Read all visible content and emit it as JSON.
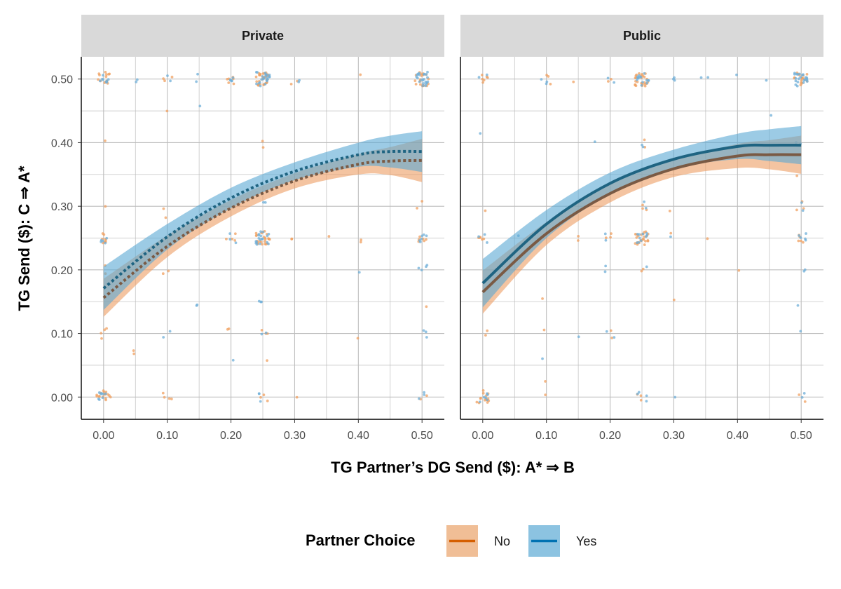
{
  "chart_data": {
    "type": "line",
    "xlabel": "TG Partner’s DG Send ($): A* ⇒ B",
    "ylabel": "TG Send ($): C ⇒ A*",
    "xlim": [
      -0.035,
      0.535
    ],
    "ylim": [
      -0.035,
      0.535
    ],
    "x_ticks": [
      0.0,
      0.1,
      0.2,
      0.3,
      0.4,
      0.5
    ],
    "x_tick_labels": [
      "0.00",
      "0.10",
      "0.20",
      "0.30",
      "0.40",
      "0.50"
    ],
    "y_ticks": [
      0.0,
      0.1,
      0.2,
      0.3,
      0.4,
      0.5
    ],
    "y_tick_labels": [
      "0.00",
      "0.10",
      "0.20",
      "0.30",
      "0.40",
      "0.50"
    ],
    "grid": true,
    "legend": {
      "title": "Partner Choice",
      "placement": "bottom",
      "entries": [
        {
          "label": "No",
          "color": "#D55E00",
          "fill": "#F0BE96"
        },
        {
          "label": "Yes",
          "color": "#0072B2",
          "fill": "#8CC3E1"
        }
      ]
    },
    "colors": {
      "no_line": "#7A5A44",
      "yes_line": "#1F6482",
      "no_band": "#ED9D63",
      "yes_band": "#5AA8D4",
      "no_point": "#F0A060",
      "yes_point": "#6FAFD8"
    },
    "panels": [
      {
        "strip": "Private",
        "linetype": "dotted",
        "series": [
          {
            "name": "No",
            "x": [
              0.0,
              0.1,
              0.2,
              0.3,
              0.4,
              0.45,
              0.5
            ],
            "y": [
              0.156,
              0.237,
              0.297,
              0.34,
              0.366,
              0.371,
              0.372
            ],
            "lower": [
              0.126,
              0.22,
              0.284,
              0.328,
              0.35,
              0.349,
              0.338
            ],
            "upper": [
              0.186,
              0.254,
              0.31,
              0.352,
              0.382,
              0.393,
              0.406
            ]
          },
          {
            "name": "Yes",
            "x": [
              0.0,
              0.1,
              0.2,
              0.3,
              0.4,
              0.45,
              0.5
            ],
            "y": [
              0.171,
              0.252,
              0.313,
              0.355,
              0.381,
              0.386,
              0.386
            ],
            "lower": [
              0.137,
              0.232,
              0.297,
              0.341,
              0.362,
              0.361,
              0.354
            ],
            "upper": [
              0.205,
              0.272,
              0.329,
              0.369,
              0.4,
              0.411,
              0.418
            ]
          }
        ]
      },
      {
        "strip": "Public",
        "linetype": "solid",
        "series": [
          {
            "name": "No",
            "x": [
              0.0,
              0.1,
              0.2,
              0.3,
              0.4,
              0.45,
              0.5
            ],
            "y": [
              0.165,
              0.257,
              0.32,
              0.359,
              0.379,
              0.381,
              0.381
            ],
            "lower": [
              0.131,
              0.239,
              0.306,
              0.346,
              0.36,
              0.358,
              0.351
            ],
            "upper": [
              0.199,
              0.275,
              0.334,
              0.372,
              0.398,
              0.404,
              0.411
            ]
          },
          {
            "name": "Yes",
            "x": [
              0.0,
              0.1,
              0.2,
              0.3,
              0.4,
              0.45,
              0.5
            ],
            "y": [
              0.179,
              0.272,
              0.336,
              0.374,
              0.394,
              0.396,
              0.396
            ],
            "lower": [
              0.141,
              0.25,
              0.319,
              0.359,
              0.374,
              0.371,
              0.366
            ],
            "upper": [
              0.217,
              0.294,
              0.353,
              0.389,
              0.414,
              0.421,
              0.426
            ]
          }
        ]
      }
    ],
    "points": [
      {
        "panel": 0,
        "group": "No",
        "x": 0.0,
        "y": 0.5,
        "n": 14
      },
      {
        "panel": 0,
        "group": "Yes",
        "x": 0.0,
        "y": 0.5,
        "n": 8
      },
      {
        "panel": 0,
        "group": "No",
        "x": 0.0,
        "y": 0.25,
        "n": 8
      },
      {
        "panel": 0,
        "group": "Yes",
        "x": 0.0,
        "y": 0.25,
        "n": 5
      },
      {
        "panel": 0,
        "group": "No",
        "x": 0.0,
        "y": 0.0,
        "n": 16
      },
      {
        "panel": 0,
        "group": "Yes",
        "x": 0.0,
        "y": 0.0,
        "n": 8
      },
      {
        "panel": 0,
        "group": "No",
        "x": 0.0,
        "y": 0.1,
        "n": 4
      },
      {
        "panel": 0,
        "group": "No",
        "x": 0.0,
        "y": 0.4,
        "n": 1
      },
      {
        "panel": 0,
        "group": "No",
        "x": 0.0,
        "y": 0.3,
        "n": 1
      },
      {
        "panel": 0,
        "group": "No",
        "x": 0.0,
        "y": 0.2,
        "n": 2
      },
      {
        "panel": 0,
        "group": "Yes",
        "x": 0.05,
        "y": 0.5,
        "n": 2
      },
      {
        "panel": 0,
        "group": "No",
        "x": 0.05,
        "y": 0.07,
        "n": 2
      },
      {
        "panel": 0,
        "group": "No",
        "x": 0.1,
        "y": 0.5,
        "n": 3
      },
      {
        "panel": 0,
        "group": "Yes",
        "x": 0.1,
        "y": 0.5,
        "n": 2
      },
      {
        "panel": 0,
        "group": "No",
        "x": 0.1,
        "y": 0.45,
        "n": 1
      },
      {
        "panel": 0,
        "group": "No",
        "x": 0.1,
        "y": 0.29,
        "n": 2
      },
      {
        "panel": 0,
        "group": "No",
        "x": 0.1,
        "y": 0.2,
        "n": 2
      },
      {
        "panel": 0,
        "group": "Yes",
        "x": 0.1,
        "y": 0.1,
        "n": 2
      },
      {
        "panel": 0,
        "group": "No",
        "x": 0.1,
        "y": 0.0,
        "n": 4
      },
      {
        "panel": 0,
        "group": "Yes",
        "x": 0.15,
        "y": 0.5,
        "n": 2
      },
      {
        "panel": 0,
        "group": "Yes",
        "x": 0.15,
        "y": 0.45,
        "n": 1
      },
      {
        "panel": 0,
        "group": "Yes",
        "x": 0.15,
        "y": 0.14,
        "n": 2
      },
      {
        "panel": 0,
        "group": "No",
        "x": 0.2,
        "y": 0.5,
        "n": 6
      },
      {
        "panel": 0,
        "group": "Yes",
        "x": 0.2,
        "y": 0.5,
        "n": 5
      },
      {
        "panel": 0,
        "group": "No",
        "x": 0.2,
        "y": 0.25,
        "n": 4
      },
      {
        "panel": 0,
        "group": "Yes",
        "x": 0.2,
        "y": 0.25,
        "n": 3
      },
      {
        "panel": 0,
        "group": "No",
        "x": 0.2,
        "y": 0.1,
        "n": 2
      },
      {
        "panel": 0,
        "group": "Yes",
        "x": 0.2,
        "y": 0.05,
        "n": 1
      },
      {
        "panel": 0,
        "group": "No",
        "x": 0.25,
        "y": 0.5,
        "n": 30
      },
      {
        "panel": 0,
        "group": "Yes",
        "x": 0.25,
        "y": 0.5,
        "n": 22
      },
      {
        "panel": 0,
        "group": "No",
        "x": 0.25,
        "y": 0.25,
        "n": 24
      },
      {
        "panel": 0,
        "group": "Yes",
        "x": 0.25,
        "y": 0.25,
        "n": 18
      },
      {
        "panel": 0,
        "group": "No",
        "x": 0.25,
        "y": 0.4,
        "n": 2
      },
      {
        "panel": 0,
        "group": "Yes",
        "x": 0.25,
        "y": 0.3,
        "n": 2
      },
      {
        "panel": 0,
        "group": "Yes",
        "x": 0.25,
        "y": 0.15,
        "n": 3
      },
      {
        "panel": 0,
        "group": "No",
        "x": 0.25,
        "y": 0.1,
        "n": 3
      },
      {
        "panel": 0,
        "group": "Yes",
        "x": 0.25,
        "y": 0.1,
        "n": 2
      },
      {
        "panel": 0,
        "group": "No",
        "x": 0.25,
        "y": 0.05,
        "n": 1
      },
      {
        "panel": 0,
        "group": "No",
        "x": 0.25,
        "y": 0.0,
        "n": 3
      },
      {
        "panel": 0,
        "group": "Yes",
        "x": 0.25,
        "y": 0.0,
        "n": 3
      },
      {
        "panel": 0,
        "group": "No",
        "x": 0.3,
        "y": 0.5,
        "n": 2
      },
      {
        "panel": 0,
        "group": "Yes",
        "x": 0.3,
        "y": 0.5,
        "n": 2
      },
      {
        "panel": 0,
        "group": "No",
        "x": 0.3,
        "y": 0.25,
        "n": 2
      },
      {
        "panel": 0,
        "group": "No",
        "x": 0.3,
        "y": 0.0,
        "n": 1
      },
      {
        "panel": 0,
        "group": "No",
        "x": 0.35,
        "y": 0.25,
        "n": 1
      },
      {
        "panel": 0,
        "group": "No",
        "x": 0.4,
        "y": 0.5,
        "n": 1
      },
      {
        "panel": 0,
        "group": "No",
        "x": 0.4,
        "y": 0.25,
        "n": 2
      },
      {
        "panel": 0,
        "group": "Yes",
        "x": 0.4,
        "y": 0.2,
        "n": 1
      },
      {
        "panel": 0,
        "group": "No",
        "x": 0.4,
        "y": 0.1,
        "n": 1
      },
      {
        "panel": 0,
        "group": "No",
        "x": 0.5,
        "y": 0.5,
        "n": 18
      },
      {
        "panel": 0,
        "group": "Yes",
        "x": 0.5,
        "y": 0.5,
        "n": 22
      },
      {
        "panel": 0,
        "group": "No",
        "x": 0.5,
        "y": 0.25,
        "n": 6
      },
      {
        "panel": 0,
        "group": "Yes",
        "x": 0.5,
        "y": 0.25,
        "n": 6
      },
      {
        "panel": 0,
        "group": "No",
        "x": 0.5,
        "y": 0.3,
        "n": 2
      },
      {
        "panel": 0,
        "group": "Yes",
        "x": 0.5,
        "y": 0.2,
        "n": 4
      },
      {
        "panel": 0,
        "group": "No",
        "x": 0.5,
        "y": 0.15,
        "n": 1
      },
      {
        "panel": 0,
        "group": "Yes",
        "x": 0.5,
        "y": 0.1,
        "n": 3
      },
      {
        "panel": 0,
        "group": "No",
        "x": 0.5,
        "y": 0.0,
        "n": 2
      },
      {
        "panel": 0,
        "group": "Yes",
        "x": 0.5,
        "y": 0.0,
        "n": 3
      },
      {
        "panel": 1,
        "group": "No",
        "x": 0.0,
        "y": 0.5,
        "n": 6
      },
      {
        "panel": 1,
        "group": "Yes",
        "x": 0.0,
        "y": 0.5,
        "n": 2
      },
      {
        "panel": 1,
        "group": "Yes",
        "x": 0.0,
        "y": 0.41,
        "n": 1
      },
      {
        "panel": 1,
        "group": "No",
        "x": 0.0,
        "y": 0.3,
        "n": 1
      },
      {
        "panel": 1,
        "group": "No",
        "x": 0.0,
        "y": 0.25,
        "n": 5
      },
      {
        "panel": 1,
        "group": "Yes",
        "x": 0.0,
        "y": 0.25,
        "n": 3
      },
      {
        "panel": 1,
        "group": "No",
        "x": 0.0,
        "y": 0.1,
        "n": 2
      },
      {
        "panel": 1,
        "group": "No",
        "x": 0.0,
        "y": 0.0,
        "n": 14
      },
      {
        "panel": 1,
        "group": "Yes",
        "x": 0.0,
        "y": 0.0,
        "n": 6
      },
      {
        "panel": 1,
        "group": "Yes",
        "x": 0.05,
        "y": 0.25,
        "n": 1
      },
      {
        "panel": 1,
        "group": "No",
        "x": 0.1,
        "y": 0.5,
        "n": 3
      },
      {
        "panel": 1,
        "group": "Yes",
        "x": 0.1,
        "y": 0.5,
        "n": 3
      },
      {
        "panel": 1,
        "group": "No",
        "x": 0.1,
        "y": 0.15,
        "n": 1
      },
      {
        "panel": 1,
        "group": "No",
        "x": 0.1,
        "y": 0.1,
        "n": 1
      },
      {
        "panel": 1,
        "group": "Yes",
        "x": 0.1,
        "y": 0.06,
        "n": 1
      },
      {
        "panel": 1,
        "group": "No",
        "x": 0.1,
        "y": 0.03,
        "n": 1
      },
      {
        "panel": 1,
        "group": "No",
        "x": 0.1,
        "y": 0.0,
        "n": 1
      },
      {
        "panel": 1,
        "group": "No",
        "x": 0.15,
        "y": 0.5,
        "n": 1
      },
      {
        "panel": 1,
        "group": "No",
        "x": 0.15,
        "y": 0.25,
        "n": 2
      },
      {
        "panel": 1,
        "group": "Yes",
        "x": 0.15,
        "y": 0.1,
        "n": 1
      },
      {
        "panel": 1,
        "group": "Yes",
        "x": 0.18,
        "y": 0.4,
        "n": 1
      },
      {
        "panel": 1,
        "group": "No",
        "x": 0.2,
        "y": 0.5,
        "n": 2
      },
      {
        "panel": 1,
        "group": "Yes",
        "x": 0.2,
        "y": 0.5,
        "n": 2
      },
      {
        "panel": 1,
        "group": "No",
        "x": 0.2,
        "y": 0.25,
        "n": 3
      },
      {
        "panel": 1,
        "group": "Yes",
        "x": 0.2,
        "y": 0.25,
        "n": 2
      },
      {
        "panel": 1,
        "group": "Yes",
        "x": 0.2,
        "y": 0.2,
        "n": 2
      },
      {
        "panel": 1,
        "group": "No",
        "x": 0.2,
        "y": 0.1,
        "n": 2
      },
      {
        "panel": 1,
        "group": "Yes",
        "x": 0.2,
        "y": 0.1,
        "n": 2
      },
      {
        "panel": 1,
        "group": "No",
        "x": 0.25,
        "y": 0.5,
        "n": 26
      },
      {
        "panel": 1,
        "group": "Yes",
        "x": 0.25,
        "y": 0.5,
        "n": 14
      },
      {
        "panel": 1,
        "group": "No",
        "x": 0.25,
        "y": 0.25,
        "n": 24
      },
      {
        "panel": 1,
        "group": "Yes",
        "x": 0.25,
        "y": 0.25,
        "n": 10
      },
      {
        "panel": 1,
        "group": "No",
        "x": 0.25,
        "y": 0.4,
        "n": 2
      },
      {
        "panel": 1,
        "group": "Yes",
        "x": 0.25,
        "y": 0.4,
        "n": 2
      },
      {
        "panel": 1,
        "group": "No",
        "x": 0.25,
        "y": 0.3,
        "n": 3
      },
      {
        "panel": 1,
        "group": "Yes",
        "x": 0.25,
        "y": 0.3,
        "n": 2
      },
      {
        "panel": 1,
        "group": "No",
        "x": 0.25,
        "y": 0.2,
        "n": 2
      },
      {
        "panel": 1,
        "group": "Yes",
        "x": 0.25,
        "y": 0.2,
        "n": 1
      },
      {
        "panel": 1,
        "group": "No",
        "x": 0.25,
        "y": 0.0,
        "n": 3
      },
      {
        "panel": 1,
        "group": "Yes",
        "x": 0.25,
        "y": 0.0,
        "n": 4
      },
      {
        "panel": 1,
        "group": "Yes",
        "x": 0.3,
        "y": 0.5,
        "n": 3
      },
      {
        "panel": 1,
        "group": "No",
        "x": 0.3,
        "y": 0.3,
        "n": 1
      },
      {
        "panel": 1,
        "group": "No",
        "x": 0.3,
        "y": 0.25,
        "n": 1
      },
      {
        "panel": 1,
        "group": "Yes",
        "x": 0.3,
        "y": 0.25,
        "n": 1
      },
      {
        "panel": 1,
        "group": "No",
        "x": 0.3,
        "y": 0.15,
        "n": 1
      },
      {
        "panel": 1,
        "group": "Yes",
        "x": 0.3,
        "y": 0.0,
        "n": 1
      },
      {
        "panel": 1,
        "group": "Yes",
        "x": 0.35,
        "y": 0.5,
        "n": 2
      },
      {
        "panel": 1,
        "group": "No",
        "x": 0.35,
        "y": 0.25,
        "n": 1
      },
      {
        "panel": 1,
        "group": "Yes",
        "x": 0.4,
        "y": 0.5,
        "n": 1
      },
      {
        "panel": 1,
        "group": "No",
        "x": 0.4,
        "y": 0.2,
        "n": 1
      },
      {
        "panel": 1,
        "group": "Yes",
        "x": 0.45,
        "y": 0.45,
        "n": 1
      },
      {
        "panel": 1,
        "group": "Yes",
        "x": 0.45,
        "y": 0.5,
        "n": 1
      },
      {
        "panel": 1,
        "group": "No",
        "x": 0.5,
        "y": 0.5,
        "n": 16
      },
      {
        "panel": 1,
        "group": "Yes",
        "x": 0.5,
        "y": 0.5,
        "n": 22
      },
      {
        "panel": 1,
        "group": "Yes",
        "x": 0.5,
        "y": 0.4,
        "n": 2
      },
      {
        "panel": 1,
        "group": "No",
        "x": 0.5,
        "y": 0.35,
        "n": 1
      },
      {
        "panel": 1,
        "group": "No",
        "x": 0.5,
        "y": 0.3,
        "n": 3
      },
      {
        "panel": 1,
        "group": "Yes",
        "x": 0.5,
        "y": 0.3,
        "n": 2
      },
      {
        "panel": 1,
        "group": "No",
        "x": 0.5,
        "y": 0.25,
        "n": 5
      },
      {
        "panel": 1,
        "group": "Yes",
        "x": 0.5,
        "y": 0.25,
        "n": 5
      },
      {
        "panel": 1,
        "group": "Yes",
        "x": 0.5,
        "y": 0.2,
        "n": 2
      },
      {
        "panel": 1,
        "group": "Yes",
        "x": 0.5,
        "y": 0.15,
        "n": 1
      },
      {
        "panel": 1,
        "group": "Yes",
        "x": 0.5,
        "y": 0.1,
        "n": 1
      },
      {
        "panel": 1,
        "group": "No",
        "x": 0.5,
        "y": 0.0,
        "n": 2
      },
      {
        "panel": 1,
        "group": "Yes",
        "x": 0.5,
        "y": 0.0,
        "n": 2
      }
    ]
  }
}
